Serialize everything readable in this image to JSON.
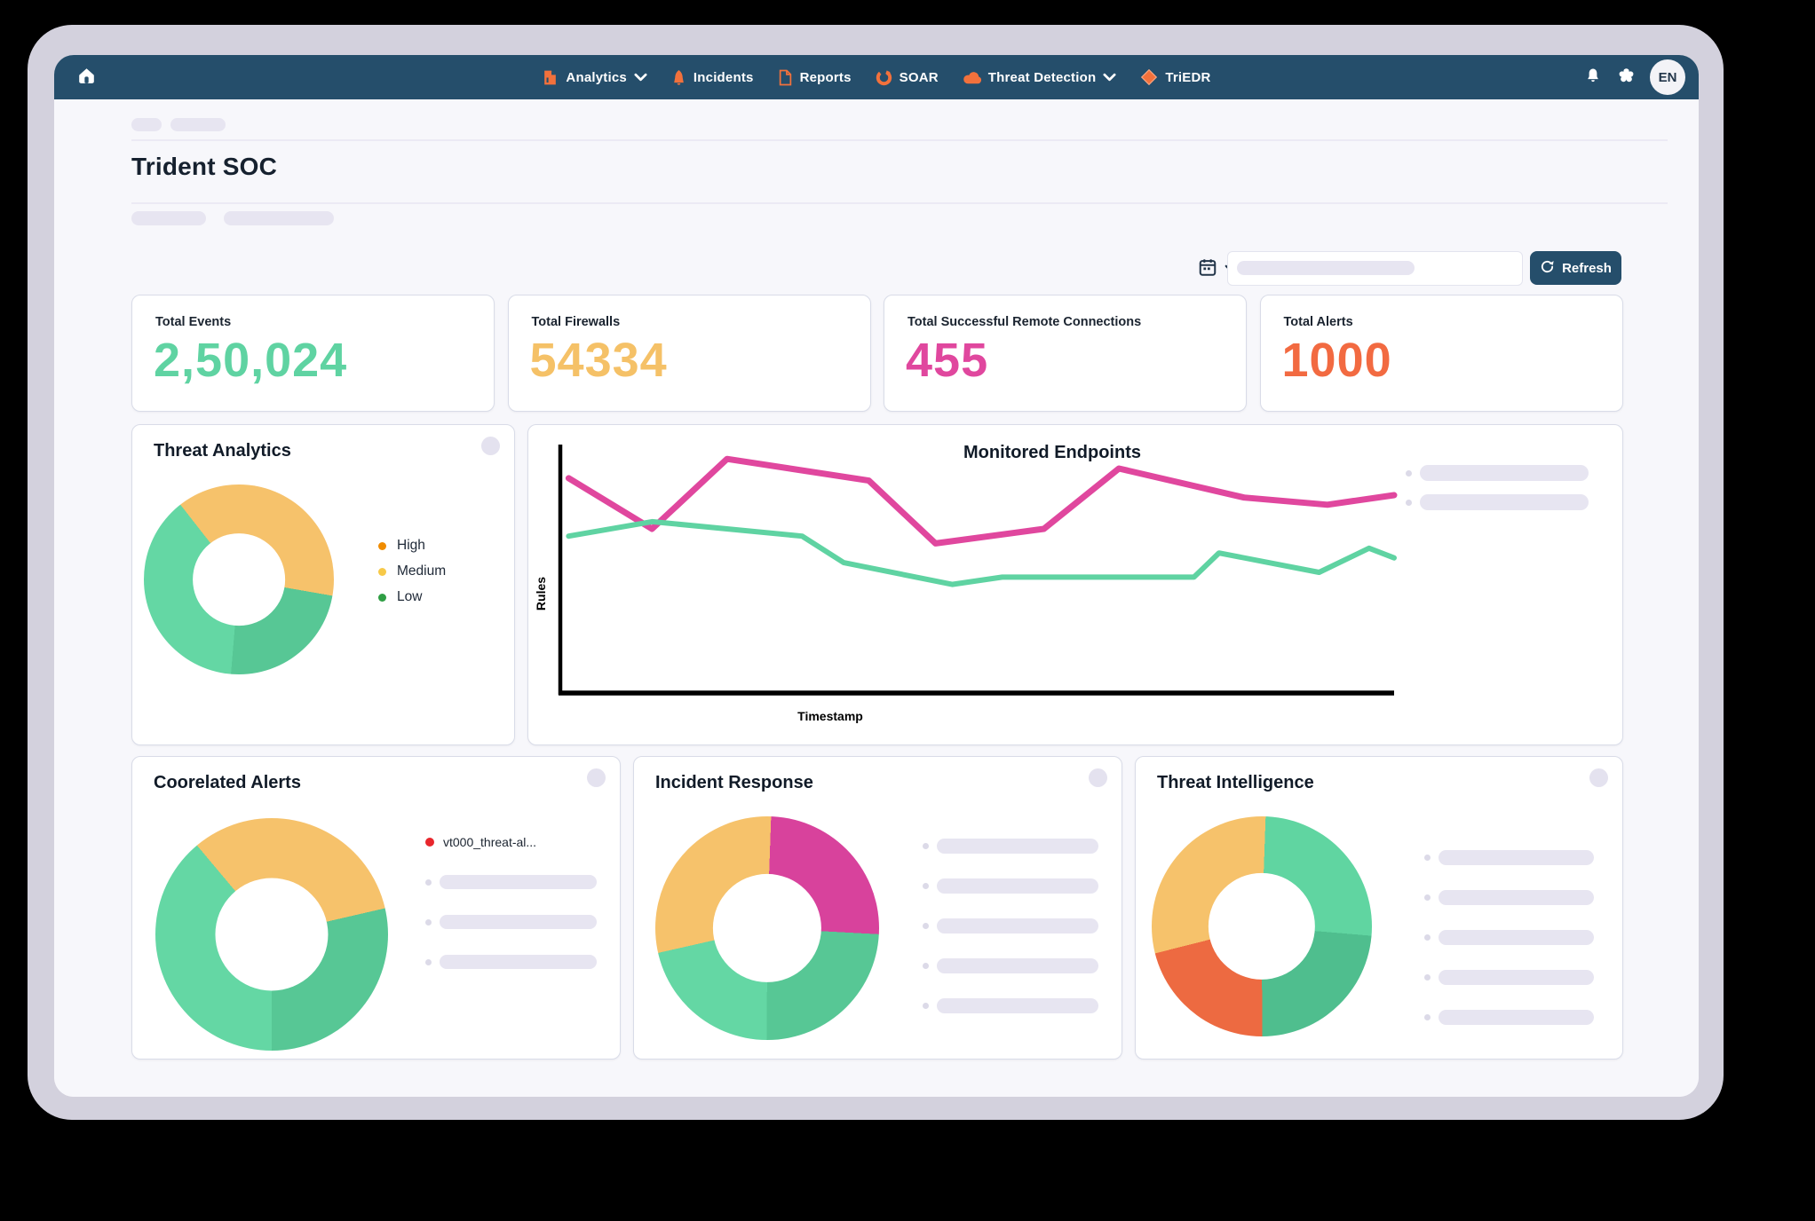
{
  "navbar": {
    "home_icon": "home-icon",
    "items": [
      {
        "label": "Analytics",
        "icon": "analytics-icon",
        "has_dropdown": true
      },
      {
        "label": "Incidents",
        "icon": "incidents-icon",
        "has_dropdown": false
      },
      {
        "label": "Reports",
        "icon": "reports-icon",
        "has_dropdown": false
      },
      {
        "label": "SOAR",
        "icon": "soar-icon",
        "has_dropdown": false
      },
      {
        "label": "Threat Detection",
        "icon": "threat-detection-icon",
        "has_dropdown": true
      },
      {
        "label": "TriEDR",
        "icon": "triedr-icon",
        "has_dropdown": false
      }
    ],
    "right_icons": [
      "bell-icon",
      "apps-icon"
    ],
    "avatar": "EN",
    "bar_color": "#254e6b",
    "icon_accent": "#f2713c"
  },
  "page": {
    "title": "Trident SOC"
  },
  "toolbar": {
    "refresh_label": "Refresh"
  },
  "stats": [
    {
      "label": "Total Events",
      "value": "2,50,024",
      "color": "#5fd3a2"
    },
    {
      "label": "Total Firewalls",
      "value": "54334",
      "color": "#f5c167"
    },
    {
      "label": "Total Successful Remote Connections",
      "value": "455",
      "color": "#e0479e"
    },
    {
      "label": "Total Alerts",
      "value": "1000",
      "color": "#f26a41"
    }
  ],
  "chart_data": [
    {
      "id": "threat-analytics",
      "type": "pie",
      "title": "Threat Analytics",
      "start_angle": 322,
      "slices": [
        {
          "color": "#f6c26b",
          "percent": 38.3
        },
        {
          "color": "#57c795",
          "percent": 23.6
        },
        {
          "color": "#64d7a4",
          "percent": 38.1
        }
      ],
      "legend": [
        {
          "label": "High",
          "dot_color": "#f08c00"
        },
        {
          "label": "Medium",
          "dot_color": "#f7c948"
        },
        {
          "label": "Low",
          "dot_color": "#2f9e44"
        }
      ],
      "legend_position": "right"
    },
    {
      "id": "monitored-endpoints",
      "type": "line",
      "title": "Monitored Endpoints",
      "xlabel": "Timestamp",
      "ylabel": "Rules",
      "ylim": [
        0,
        100
      ],
      "grid": false,
      "axis_color": "#000000",
      "legend_placeholders": 2,
      "series": [
        {
          "name": "endpoints-pink",
          "color": "#e0479e",
          "stroke_width": 7,
          "x": [
            0.01,
            0.11,
            0.2,
            0.37,
            0.45,
            0.58,
            0.67,
            0.82,
            0.92,
            1.0
          ],
          "y": [
            89,
            68,
            97,
            88,
            62,
            68,
            93,
            81,
            78,
            82
          ]
        },
        {
          "name": "endpoints-green",
          "color": "#5fd3a2",
          "stroke_width": 6,
          "x": [
            0.01,
            0.11,
            0.29,
            0.34,
            0.47,
            0.53,
            0.76,
            0.79,
            0.91,
            0.97,
            1.0
          ],
          "y": [
            65,
            71,
            65,
            54,
            45,
            48,
            48,
            58,
            50,
            60,
            56
          ]
        }
      ]
    },
    {
      "id": "coorelated-alerts",
      "type": "pie",
      "title": "Coorelated Alerts",
      "start_angle": 320,
      "slices": [
        {
          "color": "#f6c26b",
          "percent": 32.5
        },
        {
          "color": "#57c795",
          "percent": 28.6
        },
        {
          "color": "#64d7a4",
          "percent": 38.9
        }
      ],
      "legend": [
        {
          "label": "vt000_threat-al...",
          "dot_color": "#e8262c"
        }
      ],
      "legend_placeholders": 3
    },
    {
      "id": "incident-response",
      "type": "pie",
      "title": "Incident Response",
      "start_angle": 2,
      "slices": [
        {
          "color": "#d8429c",
          "percent": 25.3
        },
        {
          "color": "#57c795",
          "percent": 24.2
        },
        {
          "color": "#64d7a4",
          "percent": 21.4
        },
        {
          "color": "#f6c26b",
          "percent": 29.1
        }
      ],
      "legend_placeholders": 5
    },
    {
      "id": "threat-intelligence",
      "type": "pie",
      "title": "Threat Intelligence",
      "start_angle": 2,
      "slices": [
        {
          "color": "#60d5a1",
          "percent": 25.8
        },
        {
          "color": "#4fbe8e",
          "percent": 23.6
        },
        {
          "color": "#ed6a41",
          "percent": 21.1
        },
        {
          "color": "#f6c26b",
          "percent": 29.5
        }
      ],
      "legend_placeholders": 5
    }
  ]
}
